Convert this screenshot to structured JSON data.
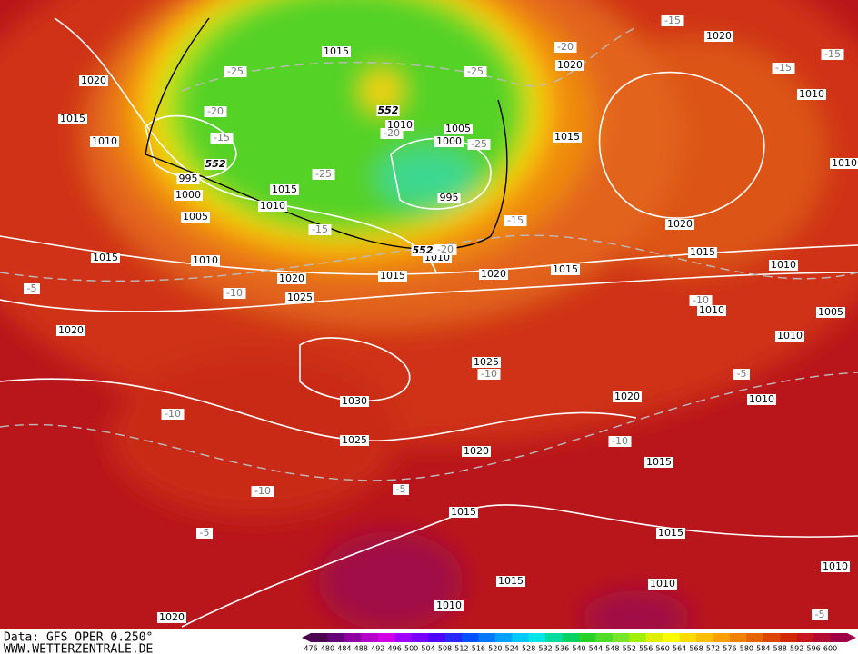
{
  "isobar_labels": [
    "1020",
    "1015",
    "1010",
    "995",
    "1000",
    "1005",
    "1015",
    "1010",
    "1020",
    "1025",
    "1015",
    "1010",
    "1020",
    "1015",
    "1010",
    "1005",
    "1000",
    "995",
    "1015",
    "1010",
    "1015",
    "1015",
    "1020",
    "1015",
    "1020",
    "1020",
    "1010",
    "1010",
    "1010",
    "1010",
    "1005",
    "1010",
    "1010",
    "1025",
    "1020",
    "1030",
    "1025",
    "1020",
    "1015",
    "1015",
    "1015",
    "1015",
    "1010",
    "1010",
    "1010",
    "1020",
    "1020"
  ],
  "temperature_labels": [
    "-25",
    "-20",
    "-15",
    "-20",
    "-25",
    "-25",
    "-25",
    "-20",
    "-15",
    "-15",
    "-15",
    "-15",
    "-15",
    "-20",
    "-5",
    "-10",
    "-10",
    "-5",
    "-10",
    "-10",
    "-10",
    "-10",
    "-5",
    "-5",
    "-5"
  ],
  "height_labels": [
    "552",
    "552",
    "552"
  ],
  "footer": {
    "source": "Data: GFS OPER 0.250°",
    "website": "WWW.WETTERZENTRALE.DE"
  },
  "colorbar": {
    "labels": [
      476,
      480,
      484,
      488,
      492,
      496,
      500,
      504,
      508,
      512,
      516,
      520,
      524,
      528,
      532,
      536,
      540,
      544,
      548,
      552,
      556,
      560,
      564,
      568,
      572,
      576,
      580,
      584,
      588,
      592,
      596,
      600
    ],
    "colors": [
      "#4b0050",
      "#640078",
      "#8c00a0",
      "#b400c8",
      "#d200e6",
      "#a000ff",
      "#7800ff",
      "#5000ff",
      "#2828ff",
      "#0050ff",
      "#0078ff",
      "#00a0ff",
      "#00c8ff",
      "#00e6e6",
      "#00dca0",
      "#00d264",
      "#28d228",
      "#50dc28",
      "#78e628",
      "#a0f000",
      "#dcf000",
      "#ffff00",
      "#ffdc00",
      "#ffbe00",
      "#ffa000",
      "#f08200",
      "#e66400",
      "#dc4600",
      "#d22800",
      "#c8141e",
      "#b40a32",
      "#a00046"
    ]
  }
}
